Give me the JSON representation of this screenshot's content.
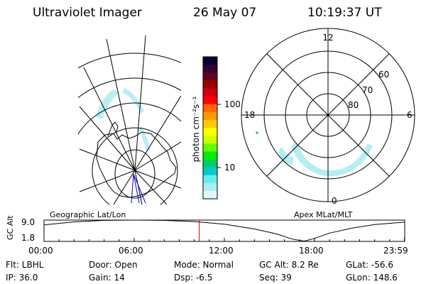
{
  "header": {
    "instrument": "Ultraviolet Imager",
    "date": "26 May 07",
    "time": "10:19:37 UT"
  },
  "geo_panel": {
    "label": "Geographic Lat/Lon"
  },
  "apex_panel": {
    "label": "Apex MLat/MLT",
    "mlt_labels": [
      "12",
      "18",
      "6",
      "0"
    ],
    "lat_labels": [
      "60",
      "70",
      "80"
    ]
  },
  "colorbar": {
    "label": "photon cm⁻²s⁻¹",
    "ticks": [
      "100",
      "10"
    ],
    "colors": [
      "#000033",
      "#330033",
      "#660022",
      "#990000",
      "#cc0011",
      "#ff0000",
      "#ff6600",
      "#ff9900",
      "#ffcc00",
      "#ffff00",
      "#ccff00",
      "#66ff00",
      "#00ee00",
      "#00cc66",
      "#00cccc",
      "#66eeee",
      "#aaf0f0",
      "#ddf8f8"
    ]
  },
  "chart_data": {
    "type": "line",
    "title": "",
    "xlabel": "",
    "ylabel": "GC Alt",
    "x": [
      "00:00",
      "06:00",
      "12:00",
      "18:00",
      "23:59"
    ],
    "yticks": [
      "9.0",
      "1.8"
    ],
    "ylim": [
      1.8,
      9.0
    ],
    "current_time": "10:19:37",
    "series": [
      {
        "name": "",
        "points": [
          {
            "x": 0.0,
            "y": 7.4
          },
          {
            "x": 2.0,
            "y": 8.4
          },
          {
            "x": 4.0,
            "y": 8.9
          },
          {
            "x": 6.0,
            "y": 9.0
          },
          {
            "x": 8.0,
            "y": 8.9
          },
          {
            "x": 10.0,
            "y": 8.5
          },
          {
            "x": 12.0,
            "y": 7.6
          },
          {
            "x": 14.0,
            "y": 6.0
          },
          {
            "x": 15.5,
            "y": 4.3
          },
          {
            "x": 16.5,
            "y": 2.6
          },
          {
            "x": 17.3,
            "y": 1.9
          },
          {
            "x": 18.0,
            "y": 2.8
          },
          {
            "x": 19.0,
            "y": 4.6
          },
          {
            "x": 20.5,
            "y": 6.3
          },
          {
            "x": 22.0,
            "y": 7.5
          },
          {
            "x": 23.98,
            "y": 8.3
          }
        ]
      }
    ]
  },
  "status": {
    "flt": "Flt: LBHL",
    "door": "Door: Open",
    "mode": "Mode: Normal",
    "gcalt": "GC Alt: 8.2 Re",
    "glat": "GLat: -56.6",
    "ip": "IP: 36.0",
    "gain": "Gain: 14",
    "dsp": "Dsp:   -6.5",
    "seq": "Seq: 39",
    "glon": "GLon: 148.6"
  }
}
